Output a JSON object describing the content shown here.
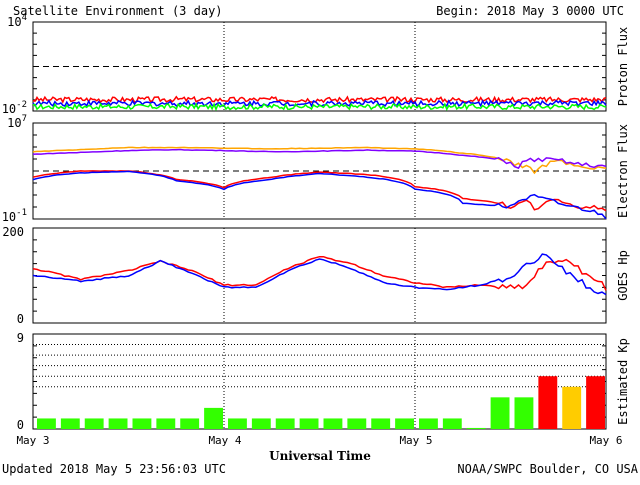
{
  "header": {
    "title": "Satellite Environment (3 day)",
    "begin": "Begin:  2018 May 3 0000 UTC"
  },
  "footer": {
    "updated": "Updated 2018 May  5 23:56:03 UTC",
    "credit": "NOAA/SWPC Boulder, CO USA",
    "xlabel": "Universal Time"
  },
  "x_ticks": [
    "May 3",
    "May 4",
    "May 5",
    "May 6"
  ],
  "colors": {
    "red": "#ff0000",
    "blue": "#0000ff",
    "green": "#00ff00",
    "orange": "#ffa500",
    "purple": "#8000ff",
    "kp_green": "#33ff00",
    "kp_yellow": "#ffcc00",
    "kp_red": "#ff0000"
  },
  "chart_data": [
    {
      "type": "line",
      "panel": "proton",
      "ylabel": "Proton Flux",
      "yscale": "log",
      "ylim": [
        0.01,
        10000
      ],
      "yticks": [
        {
          "base": "10",
          "exp": "4"
        },
        {
          "base": "10",
          "exp": "-2"
        }
      ],
      "threshold": 10,
      "xlim": [
        0,
        72
      ],
      "series": [
        {
          "color": "red",
          "x": [
            0,
            6,
            12,
            18,
            24,
            30,
            36,
            42,
            48,
            54,
            60,
            66,
            72
          ],
          "y": [
            0.058,
            0.06,
            0.058,
            0.062,
            0.058,
            0.06,
            0.059,
            0.058,
            0.06,
            0.058,
            0.06,
            0.058,
            0.06
          ]
        },
        {
          "color": "blue",
          "x": [
            0,
            6,
            12,
            18,
            24,
            30,
            36,
            42,
            48,
            54,
            60,
            66,
            72
          ],
          "y": [
            0.032,
            0.033,
            0.032,
            0.033,
            0.032,
            0.033,
            0.032,
            0.033,
            0.032,
            0.033,
            0.032,
            0.033,
            0.032
          ]
        },
        {
          "color": "green",
          "x": [
            0,
            6,
            12,
            18,
            24,
            30,
            36,
            42,
            48,
            54,
            60,
            66,
            72
          ],
          "y": [
            0.019,
            0.02,
            0.019,
            0.02,
            0.019,
            0.02,
            0.019,
            0.02,
            0.019,
            0.02,
            0.019,
            0.02,
            0.019
          ]
        }
      ]
    },
    {
      "type": "line",
      "panel": "electron",
      "ylabel": "Electron Flux",
      "yscale": "log",
      "ylim": [
        0.1,
        10000000
      ],
      "yticks": [
        {
          "base": "10",
          "exp": "7"
        },
        {
          "base": "10",
          "exp": "-1"
        }
      ],
      "threshold": 1000,
      "xlim": [
        0,
        72
      ],
      "series": [
        {
          "color": "orange",
          "x": [
            0,
            6,
            12,
            18,
            24,
            30,
            36,
            42,
            48,
            54,
            60,
            62,
            63,
            64,
            66,
            68,
            70,
            72
          ],
          "y": [
            40000,
            60000,
            90000,
            90000,
            80000,
            70000,
            80000,
            90000,
            70000,
            30000,
            5000,
            2000,
            800,
            2500,
            7000,
            3000,
            2000,
            1500
          ]
        },
        {
          "color": "purple",
          "x": [
            0,
            6,
            12,
            18,
            24,
            30,
            36,
            42,
            48,
            54,
            60,
            61,
            62,
            64,
            66,
            68,
            70,
            72
          ],
          "y": [
            25000,
            35000,
            50000,
            60000,
            50000,
            40000,
            45000,
            55000,
            45000,
            20000,
            5000,
            1500,
            8000,
            9000,
            8000,
            4000,
            3000,
            2500
          ]
        },
        {
          "color": "red",
          "x": [
            0,
            6,
            12,
            18,
            24,
            30,
            36,
            42,
            48,
            54,
            60,
            62,
            63,
            64,
            66,
            68,
            70,
            72
          ],
          "y": [
            300,
            1000,
            1000,
            200,
            40,
            300,
            800,
            500,
            50,
            5,
            1,
            3,
            0.4,
            1.5,
            4,
            1,
            1,
            0.6
          ]
        },
        {
          "color": "blue",
          "x": [
            0,
            6,
            12,
            18,
            24,
            30,
            36,
            42,
            48,
            54,
            60,
            63,
            64,
            66,
            68,
            70,
            72
          ],
          "y": [
            200,
            700,
            900,
            150,
            30,
            200,
            600,
            300,
            30,
            2,
            1,
            8,
            5,
            2,
            1,
            0.5,
            0.15
          ]
        }
      ]
    },
    {
      "type": "line",
      "panel": "goes_hp",
      "ylabel": "GOES Hp",
      "ylim": [
        0,
        200
      ],
      "yticks": [
        "200",
        "0"
      ],
      "xlim": [
        0,
        72
      ],
      "series": [
        {
          "color": "red",
          "x": [
            0,
            6,
            12,
            16,
            20,
            24,
            28,
            32,
            36,
            40,
            44,
            48,
            52,
            56,
            60,
            62,
            64,
            66,
            68,
            70,
            72
          ],
          "y": [
            115,
            92,
            110,
            130,
            110,
            80,
            80,
            115,
            140,
            125,
            100,
            85,
            75,
            80,
            75,
            80,
            120,
            135,
            120,
            100,
            75
          ]
        },
        {
          "color": "blue",
          "x": [
            0,
            6,
            12,
            16,
            20,
            24,
            28,
            32,
            36,
            40,
            44,
            48,
            52,
            56,
            60,
            62,
            64,
            66,
            68,
            70,
            72
          ],
          "y": [
            100,
            88,
            100,
            130,
            105,
            75,
            75,
            110,
            135,
            115,
            85,
            75,
            70,
            80,
            95,
            120,
            145,
            125,
            95,
            75,
            55
          ]
        }
      ]
    },
    {
      "type": "bar",
      "panel": "kp",
      "ylabel": "Estimated Kp",
      "ylim": [
        0,
        9
      ],
      "yticks": [
        "9",
        "0"
      ],
      "gridlines": [
        4,
        5,
        6,
        7,
        8,
        9
      ],
      "xlim": [
        0,
        72
      ],
      "bin_hours": 3,
      "values": [
        1,
        1,
        1,
        1,
        1,
        1,
        1,
        2,
        1,
        1,
        1,
        1,
        1,
        1,
        1,
        1,
        1,
        1,
        0.1,
        3,
        3,
        5,
        4,
        5
      ],
      "colors": [
        "kp_green",
        "kp_green",
        "kp_green",
        "kp_green",
        "kp_green",
        "kp_green",
        "kp_green",
        "kp_green",
        "kp_green",
        "kp_green",
        "kp_green",
        "kp_green",
        "kp_green",
        "kp_green",
        "kp_green",
        "kp_green",
        "kp_green",
        "kp_green",
        "kp_green",
        "kp_green",
        "kp_green",
        "kp_red",
        "kp_yellow",
        "kp_red"
      ]
    }
  ]
}
